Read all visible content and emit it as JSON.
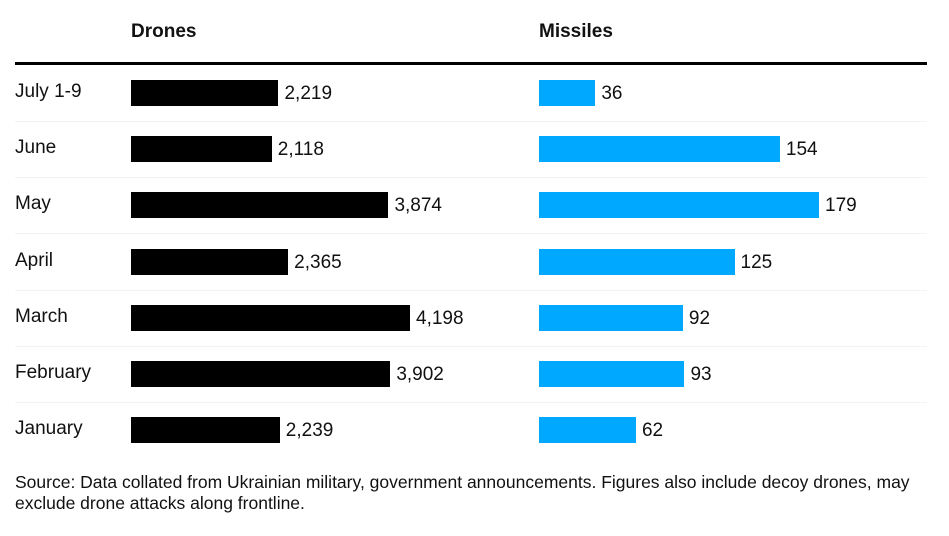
{
  "chart_data": [
    {
      "type": "bar",
      "orientation": "horizontal",
      "title": "Drones",
      "categories": [
        "July 1-9",
        "June",
        "May",
        "April",
        "March",
        "February",
        "January"
      ],
      "values": [
        2219,
        2118,
        3874,
        2365,
        4198,
        3902,
        2239
      ],
      "value_labels": [
        "2,219",
        "2,118",
        "3,874",
        "2,365",
        "4,198",
        "3,902",
        "2,239"
      ],
      "color": "#000000",
      "xlim": [
        0,
        4198
      ]
    },
    {
      "type": "bar",
      "orientation": "horizontal",
      "title": "Missiles",
      "categories": [
        "July 1-9",
        "June",
        "May",
        "April",
        "March",
        "February",
        "January"
      ],
      "values": [
        36,
        154,
        179,
        125,
        92,
        93,
        62
      ],
      "value_labels": [
        "36",
        "154",
        "179",
        "125",
        "92",
        "93",
        "62"
      ],
      "color": "#00a9ff",
      "xlim": [
        0,
        179
      ]
    }
  ],
  "headers": {
    "drones": "Drones",
    "missiles": "Missiles"
  },
  "source": "Source: Data collated from Ukrainian military, government announcements. Figures also include decoy drones, may exclude drone attacks along frontline."
}
